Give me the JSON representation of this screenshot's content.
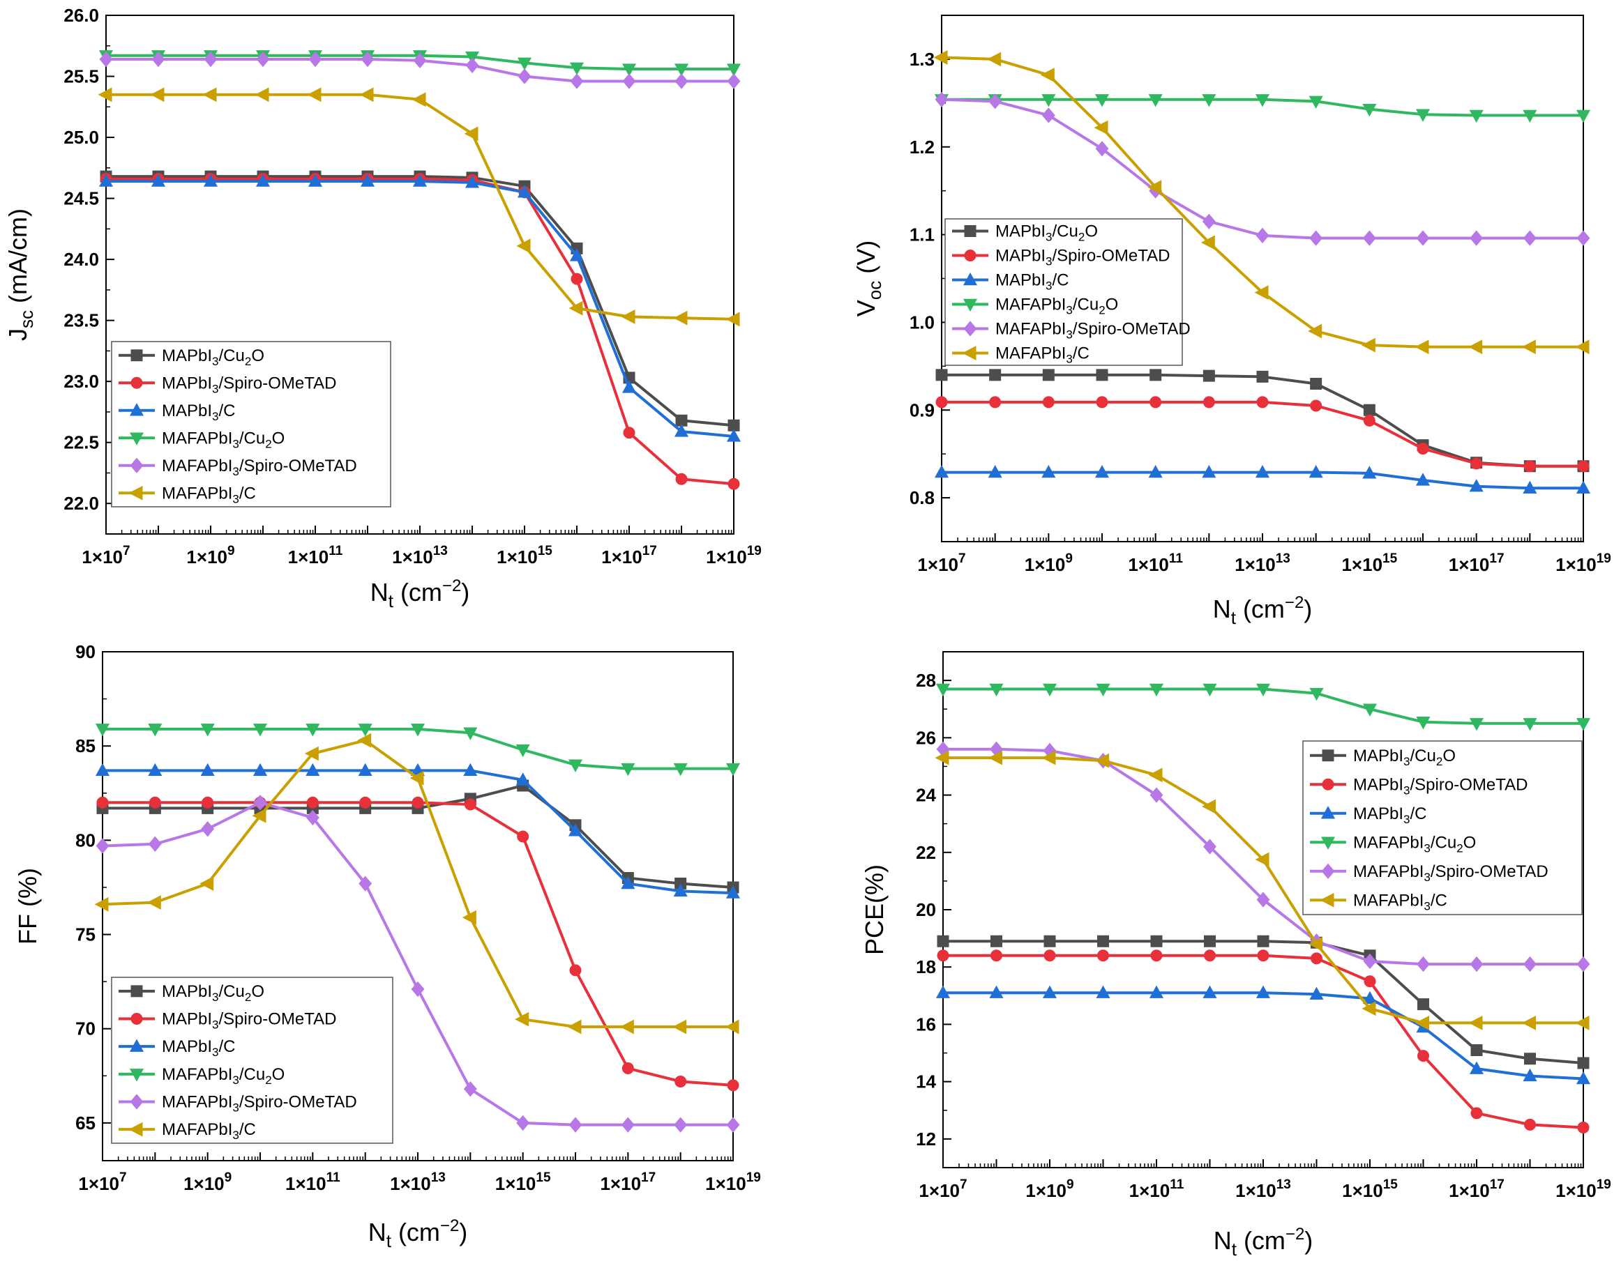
{
  "figure_type": "2x2 grid of line plots (log x-axis)",
  "series_colors": {
    "MAPbI3/Cu2O": "#4d4d4d",
    "MAPbI3/Spiro-OMeTAD": "#e8303a",
    "MAPbI3/C": "#1f6fd6",
    "MAFAPbI3/Cu2O": "#2fb860",
    "MAFAPbI3/Spiro-OMeTAD": "#b877e6",
    "MAFAPbI3/C": "#c9a000"
  },
  "marker_names": {
    "MAPbI3/Cu2O": "square",
    "MAPbI3/Spiro-OMeTAD": "circle",
    "MAPbI3/C": "triangle-up",
    "MAFAPbI3/Cu2O": "triangle-down",
    "MAFAPbI3/Spiro-OMeTAD": "diamond",
    "MAFAPbI3/C": "arrow-left"
  },
  "chart_data": [
    {
      "id": "jsc",
      "type": "line",
      "xscale": "log",
      "xlim_exp": [
        7,
        19
      ],
      "xtick_exps": [
        7,
        9,
        11,
        13,
        15,
        17,
        19
      ],
      "ylim": [
        21.75,
        26.0
      ],
      "yticks": [
        22.0,
        22.5,
        23.0,
        23.5,
        24.0,
        24.5,
        25.0,
        25.5,
        26.0
      ],
      "ytick_labels": [
        "22.0",
        "22.5",
        "23.0",
        "23.5",
        "24.0",
        "24.5",
        "25.0",
        "25.5",
        "26.0"
      ],
      "ylabel_main": "J",
      "ylabel_sub": "sc",
      "ylabel_rest": " (mA/cm)",
      "xlabel_main": "N",
      "xlabel_sub": "t",
      "xlabel_rest": " (cm",
      "xlabel_sup": "−2",
      "xlabel_end": ")",
      "legend_position": "bottom-left",
      "x_exps": [
        7,
        8,
        9,
        10,
        11,
        12,
        13,
        14,
        15,
        16,
        17,
        18,
        19
      ],
      "series": [
        {
          "name": "MAPbI3/Cu2O",
          "label_parts": [
            "MAPbI",
            "3",
            "/Cu",
            "2",
            "O"
          ],
          "values": [
            24.68,
            24.68,
            24.68,
            24.68,
            24.68,
            24.68,
            24.68,
            24.67,
            24.6,
            24.09,
            23.03,
            22.68,
            22.64
          ]
        },
        {
          "name": "MAPbI3/Spiro-OMeTAD",
          "label_parts": [
            "MAPbI",
            "3",
            "/Spiro-OMeTAD"
          ],
          "values": [
            24.66,
            24.66,
            24.66,
            24.66,
            24.66,
            24.66,
            24.66,
            24.65,
            24.55,
            23.84,
            22.58,
            22.2,
            22.16
          ]
        },
        {
          "name": "MAPbI3/C",
          "label_parts": [
            "MAPbI",
            "3",
            "/C"
          ],
          "values": [
            24.64,
            24.64,
            24.64,
            24.64,
            24.64,
            24.64,
            24.64,
            24.63,
            24.55,
            24.03,
            22.95,
            22.59,
            22.55
          ]
        },
        {
          "name": "MAFAPbI3/Cu2O",
          "label_parts": [
            "MAFAPbI",
            "3",
            "/Cu",
            "2",
            "O"
          ],
          "values": [
            25.67,
            25.67,
            25.67,
            25.67,
            25.67,
            25.67,
            25.67,
            25.66,
            25.61,
            25.57,
            25.56,
            25.56,
            25.56
          ]
        },
        {
          "name": "MAFAPbI3/Spiro-OMeTAD",
          "label_parts": [
            "MAFAPbI",
            "3",
            "/Spiro-OMeTAD"
          ],
          "values": [
            25.64,
            25.64,
            25.64,
            25.64,
            25.64,
            25.64,
            25.63,
            25.59,
            25.5,
            25.46,
            25.46,
            25.46,
            25.46
          ]
        },
        {
          "name": "MAFAPbI3/C",
          "label_parts": [
            "MAFAPbI",
            "3",
            "/C"
          ],
          "values": [
            25.35,
            25.35,
            25.35,
            25.35,
            25.35,
            25.35,
            25.31,
            25.03,
            24.11,
            23.6,
            23.53,
            23.52,
            23.51
          ]
        }
      ]
    },
    {
      "id": "voc",
      "type": "line",
      "xscale": "log",
      "xlim_exp": [
        7,
        19
      ],
      "xtick_exps": [
        7,
        9,
        11,
        13,
        15,
        17,
        19
      ],
      "ylim": [
        0.75,
        1.35
      ],
      "yticks": [
        0.8,
        0.9,
        1.0,
        1.1,
        1.2,
        1.3
      ],
      "ytick_labels": [
        "0.8",
        "0.9",
        "1.0",
        "1.1",
        "1.2",
        "1.3"
      ],
      "ylabel_main": "V",
      "ylabel_sub": "oc",
      "ylabel_rest": " (V)",
      "xlabel_main": "N",
      "xlabel_sub": "t",
      "xlabel_rest": " (cm",
      "xlabel_sup": "−2",
      "xlabel_end": ")",
      "legend_position": "middle-left",
      "x_exps": [
        7,
        8,
        9,
        10,
        11,
        12,
        13,
        14,
        15,
        16,
        17,
        18,
        19
      ],
      "series": [
        {
          "name": "MAPbI3/Cu2O",
          "label_parts": [
            "MAPbI",
            "3",
            "/Cu",
            "2",
            "O"
          ],
          "values": [
            0.94,
            0.94,
            0.94,
            0.94,
            0.94,
            0.939,
            0.938,
            0.93,
            0.9,
            0.86,
            0.84,
            0.836,
            0.836
          ]
        },
        {
          "name": "MAPbI3/Spiro-OMeTAD",
          "label_parts": [
            "MAPbI",
            "3",
            "/Spiro-OMeTAD"
          ],
          "values": [
            0.909,
            0.909,
            0.909,
            0.909,
            0.909,
            0.909,
            0.909,
            0.905,
            0.888,
            0.856,
            0.839,
            0.836,
            0.836
          ]
        },
        {
          "name": "MAPbI3/C",
          "label_parts": [
            "MAPbI",
            "3",
            "/C"
          ],
          "values": [
            0.829,
            0.829,
            0.829,
            0.829,
            0.829,
            0.829,
            0.829,
            0.829,
            0.828,
            0.82,
            0.813,
            0.811,
            0.811
          ]
        },
        {
          "name": "MAFAPbI3/Cu2O",
          "label_parts": [
            "MAFAPbI",
            "3",
            "/Cu",
            "2",
            "O"
          ],
          "values": [
            1.254,
            1.254,
            1.254,
            1.254,
            1.254,
            1.254,
            1.254,
            1.252,
            1.243,
            1.237,
            1.236,
            1.236,
            1.236
          ]
        },
        {
          "name": "MAFAPbI3/Spiro-OMeTAD",
          "label_parts": [
            "MAFAPbI",
            "3",
            "/Spiro-OMeTAD"
          ],
          "values": [
            1.254,
            1.252,
            1.236,
            1.198,
            1.15,
            1.115,
            1.099,
            1.096,
            1.096,
            1.096,
            1.096,
            1.096,
            1.096
          ]
        },
        {
          "name": "MAFAPbI3/C",
          "label_parts": [
            "MAFAPbI",
            "3",
            "/C"
          ],
          "values": [
            1.302,
            1.3,
            1.282,
            1.222,
            1.154,
            1.091,
            1.034,
            0.99,
            0.974,
            0.972,
            0.972,
            0.972,
            0.972
          ]
        }
      ]
    },
    {
      "id": "ff",
      "type": "line",
      "xscale": "log",
      "xlim_exp": [
        7,
        19
      ],
      "xtick_exps": [
        7,
        9,
        11,
        13,
        15,
        17,
        19
      ],
      "ylim": [
        63,
        90
      ],
      "yticks": [
        65,
        70,
        75,
        80,
        85,
        90
      ],
      "ytick_labels": [
        "65",
        "70",
        "75",
        "80",
        "85",
        "90"
      ],
      "ylabel_main": "FF (%)",
      "ylabel_sub": "",
      "ylabel_rest": "",
      "xlabel_main": "N",
      "xlabel_sub": "t",
      "xlabel_rest": " (cm",
      "xlabel_sup": "−2",
      "xlabel_end": ")",
      "legend_position": "bottom-left",
      "x_exps": [
        7,
        8,
        9,
        10,
        11,
        12,
        13,
        14,
        15,
        16,
        17,
        18,
        19
      ],
      "series": [
        {
          "name": "MAPbI3/Cu2O",
          "label_parts": [
            "MAPbI",
            "3",
            "/Cu",
            "2",
            "O"
          ],
          "values": [
            81.7,
            81.7,
            81.7,
            81.7,
            81.7,
            81.7,
            81.7,
            82.2,
            82.9,
            80.8,
            78.0,
            77.7,
            77.5
          ]
        },
        {
          "name": "MAPbI3/Spiro-OMeTAD",
          "label_parts": [
            "MAPbI",
            "3",
            "/Spiro-OMeTAD"
          ],
          "values": [
            82.0,
            82.0,
            82.0,
            82.0,
            82.0,
            82.0,
            82.0,
            81.9,
            80.2,
            73.1,
            67.9,
            67.2,
            67.0
          ]
        },
        {
          "name": "MAPbI3/C",
          "label_parts": [
            "MAPbI",
            "3",
            "/C"
          ],
          "values": [
            83.7,
            83.7,
            83.7,
            83.7,
            83.7,
            83.7,
            83.7,
            83.7,
            83.2,
            80.5,
            77.7,
            77.3,
            77.2
          ]
        },
        {
          "name": "MAFAPbI3/Cu2O",
          "label_parts": [
            "MAFAPbI",
            "3",
            "/Cu",
            "2",
            "O"
          ],
          "values": [
            85.9,
            85.9,
            85.9,
            85.9,
            85.9,
            85.9,
            85.9,
            85.7,
            84.8,
            84.0,
            83.8,
            83.8,
            83.8
          ]
        },
        {
          "name": "MAFAPbI3/Spiro-OMeTAD",
          "label_parts": [
            "MAFAPbI",
            "3",
            "/Spiro-OMeTAD"
          ],
          "values": [
            79.7,
            79.8,
            80.6,
            82.0,
            81.2,
            77.7,
            72.1,
            66.8,
            65.0,
            64.9,
            64.9,
            64.9,
            64.9
          ]
        },
        {
          "name": "MAFAPbI3/C",
          "label_parts": [
            "MAFAPbI",
            "3",
            "/C"
          ],
          "values": [
            76.6,
            76.7,
            77.7,
            81.3,
            84.6,
            85.3,
            83.3,
            75.9,
            70.5,
            70.1,
            70.1,
            70.1,
            70.1
          ]
        }
      ]
    },
    {
      "id": "pce",
      "type": "line",
      "xscale": "log",
      "xlim_exp": [
        7,
        19
      ],
      "xtick_exps": [
        7,
        9,
        11,
        13,
        15,
        17,
        19
      ],
      "ylim": [
        11,
        29
      ],
      "yticks": [
        12,
        14,
        16,
        18,
        20,
        22,
        24,
        26,
        28
      ],
      "ytick_labels": [
        "12",
        "14",
        "16",
        "18",
        "20",
        "22",
        "24",
        "26",
        "28"
      ],
      "ylabel_main": "PCE(%)",
      "ylabel_sub": "",
      "ylabel_rest": "",
      "xlabel_main": "N",
      "xlabel_sub": "t",
      "xlabel_rest": " (cm",
      "xlabel_sup": "−2",
      "xlabel_end": ")",
      "legend_position": "right-middle",
      "x_exps": [
        7,
        8,
        9,
        10,
        11,
        12,
        13,
        14,
        15,
        16,
        17,
        18,
        19
      ],
      "series": [
        {
          "name": "MAPbI3/Cu2O",
          "label_parts": [
            "MAPbI",
            "3",
            "/Cu",
            "2",
            "O"
          ],
          "values": [
            18.9,
            18.9,
            18.9,
            18.9,
            18.9,
            18.9,
            18.9,
            18.85,
            18.4,
            16.7,
            15.1,
            14.8,
            14.65
          ]
        },
        {
          "name": "MAPbI3/Spiro-OMeTAD",
          "label_parts": [
            "MAPbI",
            "3",
            "/Spiro-OMeTAD"
          ],
          "values": [
            18.4,
            18.4,
            18.4,
            18.4,
            18.4,
            18.4,
            18.4,
            18.3,
            17.5,
            14.9,
            12.9,
            12.5,
            12.4
          ]
        },
        {
          "name": "MAPbI3/C",
          "label_parts": [
            "MAPbI",
            "3",
            "/C"
          ],
          "values": [
            17.1,
            17.1,
            17.1,
            17.1,
            17.1,
            17.1,
            17.1,
            17.05,
            16.9,
            15.9,
            14.45,
            14.2,
            14.1
          ]
        },
        {
          "name": "MAFAPbI3/Cu2O",
          "label_parts": [
            "MAFAPbI",
            "3",
            "/Cu",
            "2",
            "O"
          ],
          "values": [
            27.7,
            27.7,
            27.7,
            27.7,
            27.7,
            27.7,
            27.7,
            27.55,
            27.0,
            26.55,
            26.5,
            26.5,
            26.5
          ]
        },
        {
          "name": "MAFAPbI3/Spiro-OMeTAD",
          "label_parts": [
            "MAFAPbI",
            "3",
            "/Spiro-OMeTAD"
          ],
          "values": [
            25.6,
            25.6,
            25.55,
            25.2,
            24.0,
            22.2,
            20.35,
            18.9,
            18.2,
            18.1,
            18.1,
            18.1,
            18.1
          ]
        },
        {
          "name": "MAFAPbI3/C",
          "label_parts": [
            "MAFAPbI",
            "3",
            "/C"
          ],
          "values": [
            25.3,
            25.3,
            25.3,
            25.2,
            24.7,
            23.6,
            21.75,
            18.8,
            16.55,
            16.05,
            16.05,
            16.05,
            16.05
          ]
        }
      ]
    }
  ]
}
